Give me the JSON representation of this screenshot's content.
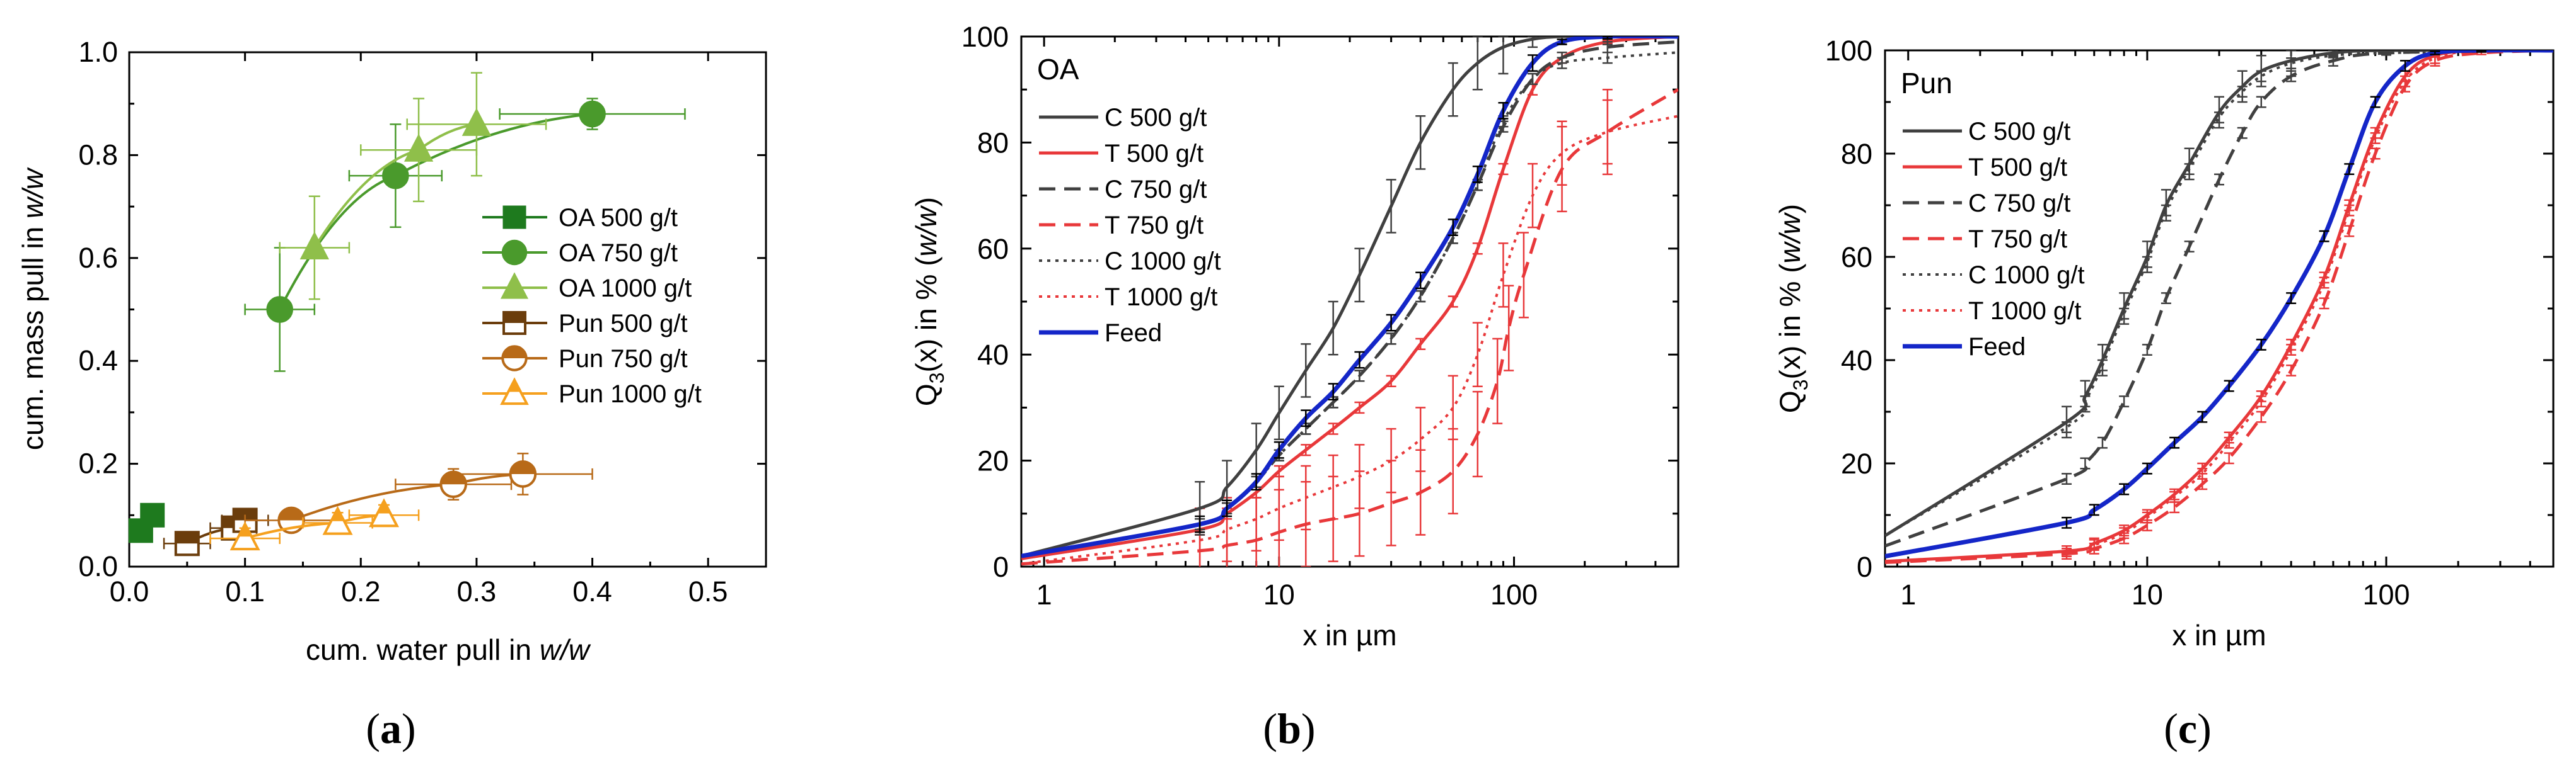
{
  "colors": {
    "oa_dark": "#1e7a1e",
    "oa_mid": "#4a9a2c",
    "oa_light": "#8fbf4a",
    "pun_dark": "#6b3d0c",
    "pun_mid": "#b86a18",
    "pun_light": "#f5a01e",
    "conc": "#404040",
    "tail": "#e8383a",
    "feed": "#1426c8"
  },
  "panel_labels": [
    "(a)",
    "(b)",
    "(c)"
  ],
  "chart_data": [
    {
      "id": "a",
      "type": "scatter",
      "xlabel_prefix": "cum. water pull in ",
      "xlabel_italic": "w/w",
      "ylabel_prefix": "cum. mass pull in ",
      "ylabel_italic": "w/w",
      "xlim": [
        0.0,
        0.55
      ],
      "ylim": [
        0.0,
        1.0
      ],
      "xticks": [
        "0.0",
        "0.1",
        "0.2",
        "0.3",
        "0.4",
        "0.5"
      ],
      "yticks": [
        "0.0",
        "0.2",
        "0.4",
        "0.6",
        "0.8",
        "1.0"
      ],
      "legend": [
        {
          "label": "OA 500 g/t",
          "marker": "square",
          "fill": "full",
          "color": "#1e7a1e"
        },
        {
          "label": "OA 750 g/t",
          "marker": "circle",
          "fill": "full",
          "color": "#4a9a2c"
        },
        {
          "label": "OA 1000 g/t",
          "marker": "triangle",
          "fill": "full",
          "color": "#8fbf4a"
        },
        {
          "label": "Pun 500 g/t",
          "marker": "square",
          "fill": "half",
          "color": "#6b3d0c"
        },
        {
          "label": "Pun 750 g/t",
          "marker": "circle",
          "fill": "half",
          "color": "#b86a18"
        },
        {
          "label": "Pun 1000 g/t",
          "marker": "triangle",
          "fill": "half",
          "color": "#f5a01e"
        }
      ],
      "series": [
        {
          "name": "OA 500 g/t",
          "x": [
            0.01,
            0.02
          ],
          "y": [
            0.07,
            0.1
          ],
          "xerr": [
            0.005,
            0.005
          ],
          "yerr": [
            0.01,
            0.01
          ]
        },
        {
          "name": "OA 750 g/t",
          "x": [
            0.13,
            0.23,
            0.4
          ],
          "y": [
            0.5,
            0.76,
            0.88
          ],
          "xerr": [
            0.03,
            0.04,
            0.08
          ],
          "yerr": [
            0.12,
            0.1,
            0.03
          ]
        },
        {
          "name": "OA 1000 g/t",
          "x": [
            0.16,
            0.25,
            0.3
          ],
          "y": [
            0.62,
            0.81,
            0.86
          ],
          "xerr": [
            0.03,
            0.05,
            0.06
          ],
          "yerr": [
            0.1,
            0.1,
            0.1
          ]
        },
        {
          "name": "Pun 500 g/t",
          "x": [
            0.05,
            0.09,
            0.1
          ],
          "y": [
            0.045,
            0.075,
            0.09
          ],
          "xerr": [
            0.02,
            0.02,
            0.02
          ],
          "yerr": [
            0.02,
            0.015,
            0.015
          ]
        },
        {
          "name": "Pun 750 g/t",
          "x": [
            0.14,
            0.28,
            0.34
          ],
          "y": [
            0.09,
            0.16,
            0.18
          ],
          "xerr": [
            0.04,
            0.05,
            0.06
          ],
          "yerr": [
            0.02,
            0.03,
            0.04
          ]
        },
        {
          "name": "Pun 1000 g/t",
          "x": [
            0.1,
            0.18,
            0.22
          ],
          "y": [
            0.055,
            0.085,
            0.1
          ],
          "xerr": [
            0.03,
            0.03,
            0.03
          ],
          "yerr": [
            0.02,
            0.02,
            0.02
          ]
        }
      ]
    },
    {
      "id": "b",
      "type": "line",
      "legend_title": "OA",
      "xlabel": "x in µm",
      "ylabel_prefix": "Q",
      "ylabel_sub": "3",
      "ylabel_mid": "(x) in % (",
      "ylabel_italic": "w/w",
      "ylabel_suffix": ")",
      "xscale": "log",
      "xlim": [
        0.8,
        500
      ],
      "ylim": [
        0,
        100
      ],
      "xticks": [
        {
          "v": 1,
          "label": "1"
        },
        {
          "v": 10,
          "label": "10"
        },
        {
          "v": 100,
          "label": "100"
        }
      ],
      "yticks": [
        "0",
        "20",
        "40",
        "60",
        "80",
        "100"
      ],
      "legend": [
        {
          "label": "C 500 g/t",
          "color": "#404040",
          "style": "solid"
        },
        {
          "label": "T 500 g/t",
          "color": "#e8383a",
          "style": "solid"
        },
        {
          "label": "C 750 g/t",
          "color": "#404040",
          "style": "dash"
        },
        {
          "label": "T 750 g/t",
          "color": "#e8383a",
          "style": "dash"
        },
        {
          "label": "C 1000 g/t",
          "color": "#404040",
          "style": "dot"
        },
        {
          "label": "T 1000 g/t",
          "color": "#e8383a",
          "style": "dot"
        },
        {
          "label": "Feed",
          "color": "#1426c8",
          "style": "solid"
        }
      ],
      "series": [
        {
          "name": "C 500 g/t",
          "x": [
            0.8,
            4.6,
            6,
            8,
            10,
            13,
            17,
            22,
            30,
            40,
            55,
            70,
            90,
            120,
            160,
            250,
            500
          ],
          "y": [
            2,
            11,
            15,
            22,
            29,
            37,
            45,
            55,
            68,
            80,
            90,
            95,
            98,
            99.5,
            100,
            100,
            100
          ],
          "err": 5
        },
        {
          "name": "T 500 g/t",
          "x": [
            0.8,
            4.6,
            6,
            8,
            10,
            13,
            17,
            22,
            30,
            40,
            55,
            70,
            90,
            120,
            160,
            250,
            500
          ],
          "y": [
            1.5,
            7,
            10,
            14,
            18,
            22,
            26,
            30,
            35,
            42,
            50,
            60,
            75,
            90,
            96,
            99,
            100
          ],
          "err": 1
        },
        {
          "name": "C 750 g/t",
          "x": [
            0.8,
            4.6,
            6,
            8,
            10,
            13,
            17,
            22,
            30,
            40,
            55,
            70,
            90,
            120,
            160,
            250,
            500
          ],
          "y": [
            2,
            8,
            11,
            16,
            21,
            26,
            31,
            36,
            43,
            51,
            62,
            72,
            83,
            92,
            96,
            98,
            99
          ],
          "err": 1
        },
        {
          "name": "T 750 g/t",
          "x": [
            0.8,
            4.6,
            6,
            8,
            10,
            13,
            17,
            22,
            30,
            40,
            55,
            70,
            85,
            95,
            110,
            160,
            250,
            500
          ],
          "y": [
            0.5,
            3,
            4,
            5,
            6.5,
            8,
            9,
            10,
            12,
            14,
            18,
            25,
            35,
            45,
            55,
            75,
            82,
            90
          ],
          "err": 8
        },
        {
          "name": "C 1000 g/t",
          "x": [
            0.8,
            4.6,
            6,
            8,
            10,
            13,
            17,
            22,
            30,
            40,
            55,
            70,
            90,
            120,
            160,
            250,
            500
          ],
          "y": [
            2,
            8,
            11,
            16,
            21,
            26,
            31,
            36,
            43,
            51,
            62,
            72,
            84,
            92,
            95,
            96,
            97
          ],
          "err": 1
        },
        {
          "name": "T 1000 g/t",
          "x": [
            0.8,
            4.6,
            6,
            8,
            10,
            13,
            17,
            22,
            30,
            40,
            55,
            70,
            90,
            120,
            160,
            250,
            500
          ],
          "y": [
            0.5,
            5,
            7,
            9,
            11,
            13,
            15,
            17,
            20,
            24,
            30,
            40,
            55,
            70,
            78,
            82,
            85
          ],
          "err": 6
        },
        {
          "name": "Feed",
          "x": [
            0.8,
            4.6,
            6,
            8,
            10,
            13,
            17,
            22,
            30,
            40,
            55,
            70,
            90,
            120,
            160,
            250,
            500
          ],
          "y": [
            2,
            8,
            11,
            16,
            22,
            28,
            33,
            39,
            46,
            54,
            64,
            74,
            86,
            95,
            99,
            100,
            100
          ],
          "err": 1.5
        }
      ]
    },
    {
      "id": "c",
      "type": "line",
      "legend_title": "Pun",
      "xlabel": "x in µm",
      "ylabel_prefix": "Q",
      "ylabel_sub": "3",
      "ylabel_mid": "(x) in % (",
      "ylabel_italic": "w/w",
      "ylabel_suffix": ")",
      "xscale": "log",
      "xlim": [
        0.8,
        500
      ],
      "ylim": [
        0,
        100
      ],
      "xticks": [
        {
          "v": 1,
          "label": "1"
        },
        {
          "v": 10,
          "label": "10"
        },
        {
          "v": 100,
          "label": "100"
        }
      ],
      "yticks": [
        "0",
        "20",
        "40",
        "60",
        "80",
        "100"
      ],
      "legend": [
        {
          "label": "C 500 g/t",
          "color": "#404040",
          "style": "solid"
        },
        {
          "label": "T 500 g/t",
          "color": "#e8383a",
          "style": "solid"
        },
        {
          "label": "C 750 g/t",
          "color": "#404040",
          "style": "dash"
        },
        {
          "label": "T 750 g/t",
          "color": "#e8383a",
          "style": "dash"
        },
        {
          "label": "C 1000 g/t",
          "color": "#404040",
          "style": "dot"
        },
        {
          "label": "T 1000 g/t",
          "color": "#e8383a",
          "style": "dot"
        },
        {
          "label": "Feed",
          "color": "#1426c8",
          "style": "solid"
        }
      ],
      "series": [
        {
          "name": "C 500 g/t",
          "x": [
            0.8,
            4.6,
            5.5,
            6.5,
            8,
            10,
            12,
            15,
            20,
            25,
            30,
            40,
            60,
            100,
            500
          ],
          "y": [
            6,
            28,
            33,
            40,
            50,
            60,
            70,
            78,
            88,
            93,
            96,
            98,
            99.5,
            100,
            100
          ],
          "err": 3
        },
        {
          "name": "T 500 g/t",
          "x": [
            0.8,
            4.6,
            6,
            8,
            10,
            13,
            17,
            22,
            30,
            40,
            55,
            70,
            90,
            120,
            160,
            250,
            500
          ],
          "y": [
            1,
            3,
            4.5,
            7,
            10,
            14,
            19,
            25,
            33,
            43,
            56,
            70,
            84,
            95,
            99,
            100,
            100
          ],
          "err": 1
        },
        {
          "name": "C 750 g/t",
          "x": [
            0.8,
            4.6,
            5.5,
            6.5,
            8,
            10,
            12,
            15,
            20,
            25,
            30,
            40,
            60,
            100,
            500
          ],
          "y": [
            4,
            17,
            20,
            24,
            32,
            42,
            52,
            62,
            75,
            84,
            90,
            95,
            98,
            99.5,
            100
          ],
          "err": 1
        },
        {
          "name": "T 750 g/t",
          "x": [
            0.8,
            4.6,
            6,
            8,
            10,
            13,
            17,
            22,
            30,
            40,
            55,
            70,
            90,
            120,
            160,
            250,
            500
          ],
          "y": [
            0.8,
            2.5,
            3.5,
            5.5,
            8,
            11.5,
            16,
            21,
            29,
            38,
            51,
            65,
            80,
            93,
            98,
            99.5,
            100
          ],
          "err": 1
        },
        {
          "name": "C 1000 g/t",
          "x": [
            0.8,
            4.6,
            5.5,
            6.5,
            8,
            10,
            12,
            15,
            20,
            25,
            30,
            40,
            60,
            100,
            500
          ],
          "y": [
            6,
            27,
            32,
            39,
            49,
            59,
            69,
            77,
            87,
            92,
            95,
            97.5,
            99,
            99.5,
            100
          ],
          "err": 1
        },
        {
          "name": "T 1000 g/t",
          "x": [
            0.8,
            4.6,
            6,
            8,
            10,
            13,
            17,
            22,
            30,
            40,
            55,
            70,
            90,
            120,
            160,
            250,
            500
          ],
          "y": [
            1,
            3,
            4.2,
            6.5,
            9.5,
            13.5,
            18,
            24,
            32,
            42,
            55,
            69,
            83,
            94,
            98.5,
            100,
            100
          ],
          "err": 1
        },
        {
          "name": "Feed",
          "x": [
            0.8,
            4.6,
            6,
            8,
            10,
            13,
            17,
            22,
            30,
            40,
            55,
            70,
            90,
            120,
            160,
            250,
            500
          ],
          "y": [
            2,
            8.5,
            11,
            15,
            19,
            24,
            29,
            35,
            43,
            52,
            64,
            77,
            90,
            97,
            99.5,
            100,
            100
          ],
          "err": 1
        }
      ]
    }
  ]
}
